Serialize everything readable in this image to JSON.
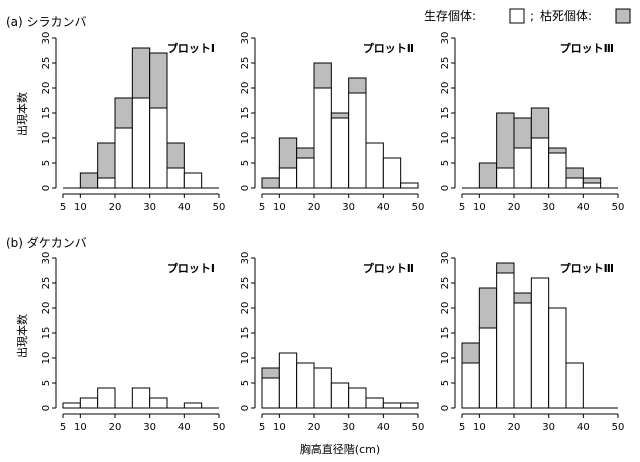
{
  "legend": {
    "alive_label": "生存個体:",
    "separator": ";",
    "dead_label": "枯死個体:",
    "alive_color": "#ffffff",
    "dead_color": "#bdbdbd"
  },
  "sections": [
    {
      "label": "(a) シラカンバ"
    },
    {
      "label": "(b) ダケカンバ"
    }
  ],
  "ylabel": "出現本数",
  "xlabel": "胸高直径階(cm)",
  "chart_data": [
    {
      "type": "bar",
      "stacked": true,
      "species": "シラカンバ",
      "title": "プロットⅠ",
      "bin_width": 5,
      "xlim": [
        5,
        50
      ],
      "ylim": [
        0,
        30
      ],
      "xticks": [
        5,
        10,
        20,
        30,
        40,
        50
      ],
      "yticks": [
        0,
        5,
        10,
        15,
        20,
        25,
        30
      ],
      "bins": [
        10,
        15,
        20,
        25,
        30,
        35,
        40
      ],
      "series": [
        {
          "name": "生存個体",
          "values": [
            0,
            2,
            12,
            18,
            16,
            4,
            3
          ]
        },
        {
          "name": "枯死個体",
          "values": [
            3,
            7,
            6,
            10,
            11,
            5,
            0
          ]
        }
      ]
    },
    {
      "type": "bar",
      "stacked": true,
      "species": "シラカンバ",
      "title": "プロットⅡ",
      "bin_width": 5,
      "xlim": [
        5,
        50
      ],
      "ylim": [
        0,
        30
      ],
      "xticks": [
        5,
        10,
        20,
        30,
        40,
        50
      ],
      "yticks": [
        0,
        5,
        10,
        15,
        20,
        25,
        30
      ],
      "bins": [
        5,
        10,
        15,
        20,
        25,
        30,
        35,
        40,
        45
      ],
      "series": [
        {
          "name": "生存個体",
          "values": [
            0,
            4,
            6,
            20,
            14,
            19,
            9,
            6,
            1
          ]
        },
        {
          "name": "枯死個体",
          "values": [
            2,
            6,
            2,
            5,
            1,
            3,
            0,
            0,
            0
          ]
        }
      ]
    },
    {
      "type": "bar",
      "stacked": true,
      "species": "シラカンバ",
      "title": "プロットⅢ",
      "bin_width": 5,
      "xlim": [
        5,
        50
      ],
      "ylim": [
        0,
        30
      ],
      "xticks": [
        5,
        10,
        20,
        30,
        40,
        50
      ],
      "yticks": [
        0,
        5,
        10,
        15,
        20,
        25,
        30
      ],
      "bins": [
        10,
        15,
        20,
        25,
        30,
        35,
        40
      ],
      "series": [
        {
          "name": "生存個体",
          "values": [
            0,
            4,
            8,
            10,
            7,
            2,
            1
          ]
        },
        {
          "name": "枯死個体",
          "values": [
            5,
            11,
            6,
            6,
            1,
            2,
            1
          ]
        }
      ]
    },
    {
      "type": "bar",
      "stacked": true,
      "species": "ダケカンバ",
      "title": "プロットⅠ",
      "bin_width": 5,
      "xlim": [
        5,
        50
      ],
      "ylim": [
        0,
        30
      ],
      "xticks": [
        5,
        10,
        20,
        30,
        40,
        50
      ],
      "yticks": [
        0,
        5,
        10,
        15,
        20,
        25,
        30
      ],
      "bins": [
        5,
        10,
        15,
        20,
        25,
        30,
        35,
        40
      ],
      "series": [
        {
          "name": "生存個体",
          "values": [
            1,
            2,
            4,
            0,
            4,
            2,
            0,
            1
          ]
        },
        {
          "name": "枯死個体",
          "values": [
            0,
            0,
            0,
            0,
            0,
            0,
            0,
            0
          ]
        }
      ]
    },
    {
      "type": "bar",
      "stacked": true,
      "species": "ダケカンバ",
      "title": "プロットⅡ",
      "bin_width": 5,
      "xlim": [
        5,
        50
      ],
      "ylim": [
        0,
        30
      ],
      "xticks": [
        5,
        10,
        20,
        30,
        40,
        50
      ],
      "yticks": [
        0,
        5,
        10,
        15,
        20,
        25,
        30
      ],
      "bins": [
        5,
        10,
        15,
        20,
        25,
        30,
        35,
        40,
        45
      ],
      "series": [
        {
          "name": "生存個体",
          "values": [
            6,
            11,
            9,
            8,
            5,
            4,
            2,
            1,
            1
          ]
        },
        {
          "name": "枯死個体",
          "values": [
            2,
            0,
            0,
            0,
            0,
            0,
            0,
            0,
            0
          ]
        }
      ]
    },
    {
      "type": "bar",
      "stacked": true,
      "species": "ダケカンバ",
      "title": "プロットⅢ",
      "bin_width": 5,
      "xlim": [
        5,
        50
      ],
      "ylim": [
        0,
        30
      ],
      "xticks": [
        5,
        10,
        20,
        30,
        40,
        50
      ],
      "yticks": [
        0,
        5,
        10,
        15,
        20,
        25,
        30
      ],
      "bins": [
        5,
        10,
        15,
        20,
        25,
        30,
        35
      ],
      "series": [
        {
          "name": "生存個体",
          "values": [
            9,
            16,
            27,
            21,
            26,
            20,
            9
          ]
        },
        {
          "name": "枯死個体",
          "values": [
            4,
            8,
            2,
            2,
            0,
            0,
            0
          ]
        }
      ]
    }
  ]
}
